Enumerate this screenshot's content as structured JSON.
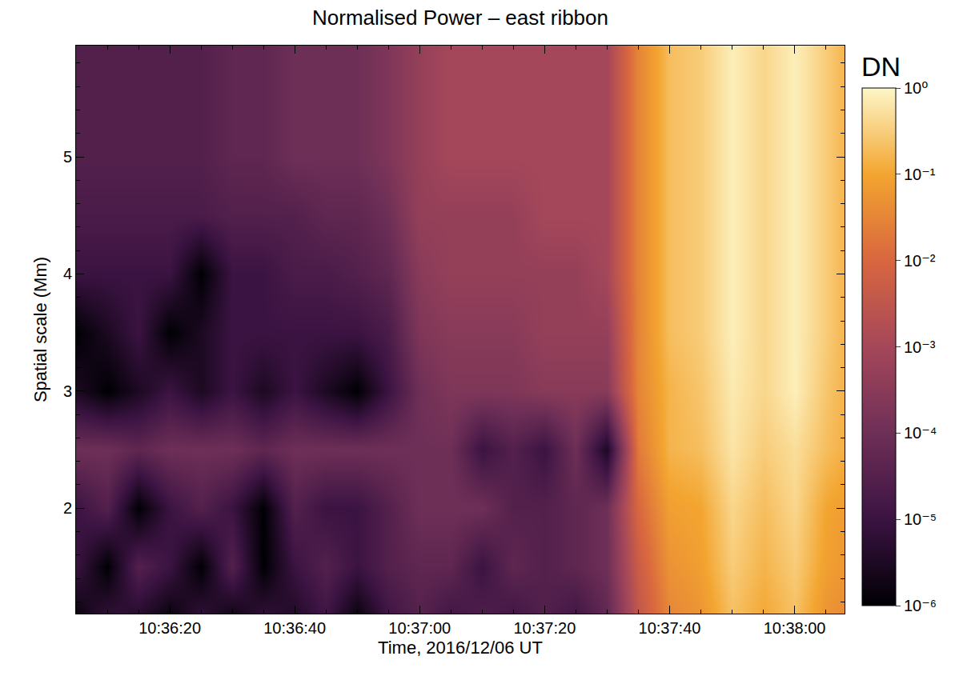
{
  "chart_data": {
    "type": "heatmap",
    "title": "Normalised Power – east ribbon",
    "x_label": "Time, 2016/12/06 UT",
    "y_label": "Spatial scale (Mm)",
    "x": [
      "2016-12-06 10:36:00",
      "2016-12-06 10:36:05",
      "2016-12-06 10:36:10",
      "2016-12-06 10:36:15",
      "2016-12-06 10:36:20",
      "2016-12-06 10:36:25",
      "2016-12-06 10:36:30",
      "2016-12-06 10:36:35",
      "2016-12-06 10:36:40",
      "2016-12-06 10:36:45",
      "2016-12-06 10:36:50",
      "2016-12-06 10:36:55",
      "2016-12-06 10:37:00",
      "2016-12-06 10:37:05",
      "2016-12-06 10:37:10",
      "2016-12-06 10:37:15",
      "2016-12-06 10:37:20",
      "2016-12-06 10:37:25",
      "2016-12-06 10:37:30",
      "2016-12-06 10:37:35",
      "2016-12-06 10:37:40",
      "2016-12-06 10:37:45",
      "2016-12-06 10:37:50",
      "2016-12-06 10:37:55",
      "2016-12-06 10:38:00",
      "2016-12-06 10:38:05",
      "2016-12-06 10:38:10"
    ],
    "y": [
      1.0,
      1.5,
      2.0,
      2.5,
      3.0,
      3.5,
      4.0,
      4.5,
      5.0,
      5.5,
      6.0
    ],
    "cells": [
      [
        1e-05,
        1e-06,
        1e-05,
        3e-06,
        1e-06,
        1e-05,
        1e-06,
        1e-05,
        3e-06,
        1e-05,
        1e-06,
        1e-05,
        3e-05,
        1e-05,
        3e-05,
        1e-05,
        3e-05,
        1e-05,
        5e-05,
        0.003,
        0.03,
        0.05,
        0.2,
        0.1,
        0.2,
        0.05,
        0.03
      ],
      [
        3e-06,
        1e-05,
        1e-06,
        3e-05,
        1e-05,
        1e-06,
        3e-05,
        1e-06,
        1e-05,
        3e-05,
        1e-05,
        3e-05,
        5e-05,
        5e-05,
        1e-05,
        5e-05,
        3e-05,
        5e-05,
        0.0001,
        0.005,
        0.05,
        0.08,
        0.3,
        0.15,
        0.3,
        0.08,
        0.05
      ],
      [
        1e-06,
        1e-05,
        3e-05,
        1e-06,
        1e-05,
        3e-05,
        1e-05,
        1e-06,
        3e-05,
        1e-05,
        1e-05,
        3e-05,
        0.0001,
        0.0001,
        0.0001,
        3e-05,
        3e-05,
        5e-05,
        0.0001,
        0.01,
        0.08,
        0.1,
        0.4,
        0.2,
        0.4,
        0.1,
        0.06
      ],
      [
        0.0001,
        0.0001,
        0.0001,
        5e-05,
        0.0001,
        0.0001,
        0.0001,
        5e-05,
        0.0001,
        0.0001,
        0.0001,
        0.0001,
        0.0001,
        0.0001,
        1e-05,
        3e-05,
        1e-05,
        0.0001,
        3e-06,
        0.02,
        0.15,
        0.2,
        0.6,
        0.3,
        0.5,
        0.2,
        0.1
      ],
      [
        1e-05,
        3e-06,
        1e-06,
        3e-06,
        1e-05,
        3e-06,
        1e-05,
        3e-06,
        1e-05,
        3e-06,
        1e-06,
        1e-05,
        0.0001,
        0.0002,
        0.0002,
        0.0002,
        0.0003,
        0.0003,
        0.0003,
        0.03,
        0.15,
        0.25,
        0.7,
        0.4,
        0.8,
        0.25,
        0.1
      ],
      [
        3e-06,
        1e-06,
        3e-06,
        1e-05,
        1e-06,
        3e-06,
        1e-05,
        1e-05,
        1e-05,
        1e-05,
        1e-05,
        2e-05,
        0.0002,
        0.0003,
        0.0003,
        0.0003,
        0.0005,
        0.0005,
        0.0005,
        0.03,
        0.2,
        0.3,
        0.8,
        0.4,
        0.8,
        0.3,
        0.1
      ],
      [
        1e-05,
        1e-05,
        1e-05,
        1e-05,
        1e-05,
        1e-06,
        1e-05,
        1e-05,
        2e-05,
        2e-05,
        3e-05,
        5e-05,
        0.0003,
        0.0005,
        0.0005,
        0.0005,
        0.0005,
        0.0005,
        0.001,
        0.03,
        0.2,
        0.3,
        0.8,
        0.4,
        0.8,
        0.3,
        0.1
      ],
      [
        2e-05,
        2e-05,
        2e-05,
        2e-05,
        2e-05,
        2e-05,
        3e-05,
        3e-05,
        3e-05,
        5e-05,
        5e-05,
        0.0001,
        0.0005,
        0.0005,
        0.0005,
        0.0005,
        0.001,
        0.001,
        0.001,
        0.03,
        0.2,
        0.3,
        0.8,
        0.4,
        0.8,
        0.3,
        0.1
      ],
      [
        3e-05,
        3e-05,
        3e-05,
        3e-05,
        3e-05,
        3e-05,
        5e-05,
        5e-05,
        0.0001,
        0.0001,
        0.0001,
        0.0002,
        0.0005,
        0.001,
        0.001,
        0.001,
        0.001,
        0.001,
        0.001,
        0.03,
        0.2,
        0.3,
        0.8,
        0.4,
        0.8,
        0.3,
        0.1
      ],
      [
        3e-05,
        3e-05,
        3e-05,
        3e-05,
        3e-05,
        3e-05,
        5e-05,
        5e-05,
        0.0001,
        0.0001,
        0.0001,
        0.0002,
        0.0005,
        0.001,
        0.001,
        0.001,
        0.001,
        0.001,
        0.001,
        0.03,
        0.2,
        0.3,
        0.8,
        0.4,
        0.8,
        0.3,
        0.1
      ],
      [
        3e-05,
        3e-05,
        3e-05,
        3e-05,
        3e-05,
        3e-05,
        5e-05,
        5e-05,
        0.0001,
        0.0001,
        0.0001,
        0.0002,
        0.0005,
        0.001,
        0.001,
        0.001,
        0.001,
        0.001,
        0.001,
        0.03,
        0.2,
        0.3,
        0.8,
        0.4,
        0.8,
        0.3,
        0.1
      ]
    ],
    "xlim": [
      "2016-12-06 10:36:05",
      "2016-12-06 10:38:08"
    ],
    "xticks": [
      {
        "value": "2016-12-06 10:36:20",
        "label": "10:36:20"
      },
      {
        "value": "2016-12-06 10:36:40",
        "label": "10:36:40"
      },
      {
        "value": "2016-12-06 10:37:00",
        "label": "10:37:00"
      },
      {
        "value": "2016-12-06 10:37:20",
        "label": "10:37:20"
      },
      {
        "value": "2016-12-06 10:37:40",
        "label": "10:37:40"
      },
      {
        "value": "2016-12-06 10:38:00",
        "label": "10:38:00"
      }
    ],
    "ylim": [
      1.1,
      5.95
    ],
    "yticks": [
      2,
      3,
      4,
      5
    ],
    "colorbar_title": "DN",
    "colorbar_range": [
      1e-06,
      1
    ],
    "colorbar_ticks": [
      {
        "value": 1e-06,
        "label": "10⁻⁶"
      },
      {
        "value": 1e-05,
        "label": "10⁻⁵"
      },
      {
        "value": 0.0001,
        "label": "10⁻⁴"
      },
      {
        "value": 0.001,
        "label": "10⁻³"
      },
      {
        "value": 0.01,
        "label": "10⁻²"
      },
      {
        "value": 0.1,
        "label": "10⁻¹"
      },
      {
        "value": 1,
        "label": "10⁰"
      }
    ],
    "log": "color",
    "grid": false
  }
}
